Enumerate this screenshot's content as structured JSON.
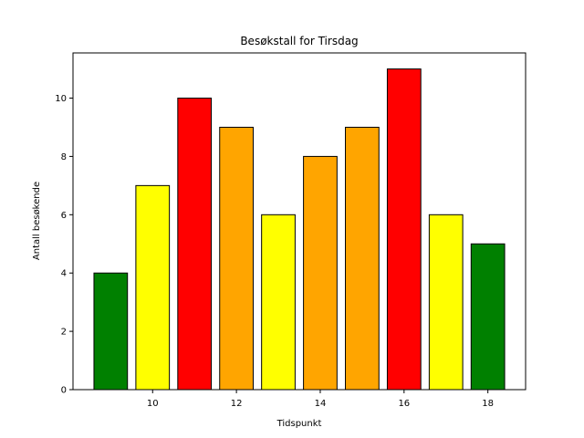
{
  "chart_data": {
    "type": "bar",
    "title": "Besøkstall for Tirsdag",
    "xlabel": "Tidspunkt",
    "ylabel": "Antall besøkende",
    "x": [
      9,
      10,
      11,
      12,
      13,
      14,
      15,
      16,
      17,
      18
    ],
    "values": [
      4,
      7,
      10,
      9,
      6,
      8,
      9,
      11,
      6,
      5
    ],
    "bar_colors": [
      "#008000",
      "#ffff00",
      "#ff0000",
      "#ffa500",
      "#ffff00",
      "#ffa500",
      "#ffa500",
      "#ff0000",
      "#ffff00",
      "#008000"
    ],
    "edge_color": "#000000",
    "xlim": [
      8.1,
      18.9
    ],
    "ylim": [
      0,
      11.55
    ],
    "xticks": [
      10,
      12,
      14,
      16,
      18
    ],
    "yticks": [
      0,
      2,
      4,
      6,
      8,
      10
    ],
    "grid": false,
    "legend": "none"
  }
}
